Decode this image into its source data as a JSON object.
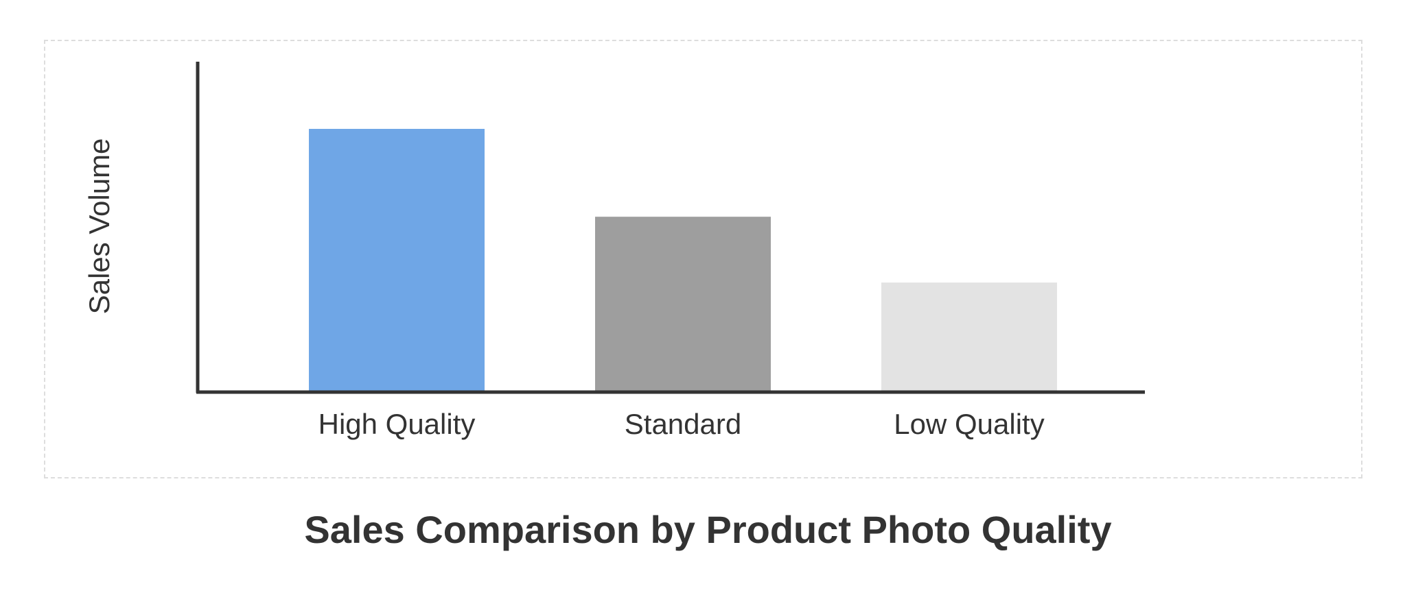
{
  "chart_data": {
    "type": "bar",
    "title": "Sales Comparison by Product Photo Quality",
    "xlabel": "",
    "ylabel": "Sales Volume",
    "categories": [
      "High Quality",
      "Standard",
      "Low Quality"
    ],
    "values": [
      80,
      53.3,
      33.3
    ],
    "ylim": [
      0,
      100
    ],
    "grid": false,
    "legend": "none",
    "colors": [
      "#6fa6e6",
      "#9e9e9e",
      "#e3e3e3"
    ],
    "axis_color": "#333333",
    "frame_border_color": "#dddddd"
  }
}
